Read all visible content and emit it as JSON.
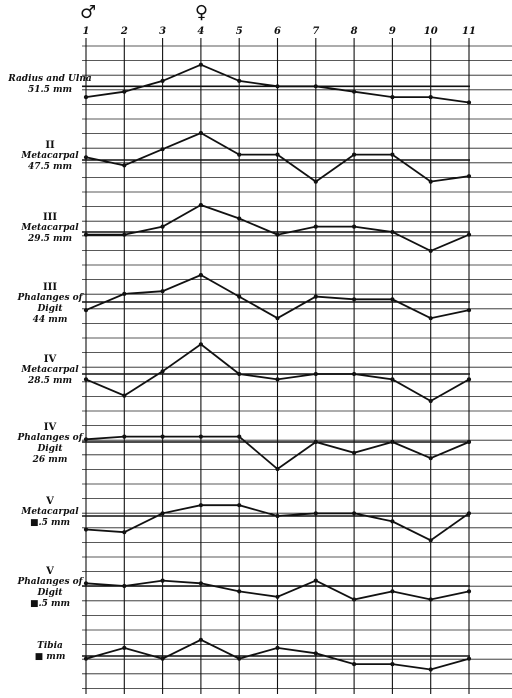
{
  "chart_data": {
    "type": "line",
    "x": [
      "1",
      "2",
      "3",
      "4",
      "5",
      "6",
      "7",
      "8",
      "9",
      "10",
      "11"
    ],
    "sex_markers": [
      {
        "column": "1",
        "symbol": "♂"
      },
      {
        "column": "4",
        "symbol": "♀"
      }
    ],
    "series": [
      {
        "roman": "",
        "name": "Radius and Ulna",
        "length": "51.5 mm",
        "baseline": 0.1,
        "values": [
          -0.3,
          -0.1,
          0.3,
          0.9,
          0.3,
          0.1,
          0.1,
          -0.1,
          -0.3,
          -0.3,
          -0.5
        ]
      },
      {
        "roman": "II",
        "name": "Metacarpal",
        "length": "47.5 mm",
        "baseline": 0.0,
        "values": [
          0.1,
          -0.2,
          0.4,
          1.0,
          0.2,
          0.2,
          -0.8,
          0.2,
          0.2,
          -0.8,
          -0.6
        ]
      },
      {
        "roman": "III",
        "name": "Metacarpal",
        "length": "29.5 mm",
        "baseline": 0.0,
        "values": [
          -0.1,
          -0.1,
          0.2,
          1.0,
          0.5,
          -0.1,
          0.2,
          0.2,
          0.0,
          -0.7,
          -0.1
        ]
      },
      {
        "roman": "III",
        "name": "Phalanges of Digit",
        "length": "44 mm",
        "baseline": 0.0,
        "values": [
          -0.3,
          0.3,
          0.4,
          1.0,
          0.2,
          -0.6,
          0.2,
          0.1,
          0.1,
          -0.6,
          -0.3
        ]
      },
      {
        "roman": "IV",
        "name": "Metacarpal",
        "length": "28.5 mm",
        "baseline": 0.0,
        "values": [
          -0.2,
          -0.8,
          0.1,
          1.1,
          0.0,
          -0.2,
          0.0,
          0.0,
          -0.2,
          -1.0,
          -0.2
        ]
      },
      {
        "roman": "IV",
        "name": "Phalanges of Digit",
        "length": "26 mm",
        "baseline": 0.0,
        "values": [
          0.1,
          0.2,
          0.2,
          0.2,
          0.2,
          -1.0,
          0.0,
          -0.4,
          0.0,
          -0.6,
          0.0
        ]
      },
      {
        "roman": "V",
        "name": "Metacarpal",
        "length": "■.5 mm",
        "baseline": 0.0,
        "values": [
          -0.5,
          -0.6,
          0.1,
          0.4,
          0.4,
          0.0,
          0.1,
          0.1,
          -0.2,
          -0.9,
          0.1
        ]
      },
      {
        "roman": "V",
        "name": "Phalanges of Digit",
        "length": "■.5 mm",
        "baseline": 0.0,
        "values": [
          0.1,
          0.0,
          0.2,
          0.1,
          -0.2,
          -0.4,
          0.2,
          -0.5,
          -0.2,
          -0.5,
          -0.2
        ]
      },
      {
        "roman": "",
        "name": "Tibia",
        "length": "■ mm",
        "baseline": 0.0,
        "values": [
          -0.1,
          0.3,
          -0.1,
          0.6,
          -0.1,
          0.3,
          0.1,
          -0.3,
          -0.3,
          -0.5,
          -0.1
        ]
      }
    ],
    "grid": true,
    "title": "",
    "xlabel": "",
    "ylabel": ""
  }
}
